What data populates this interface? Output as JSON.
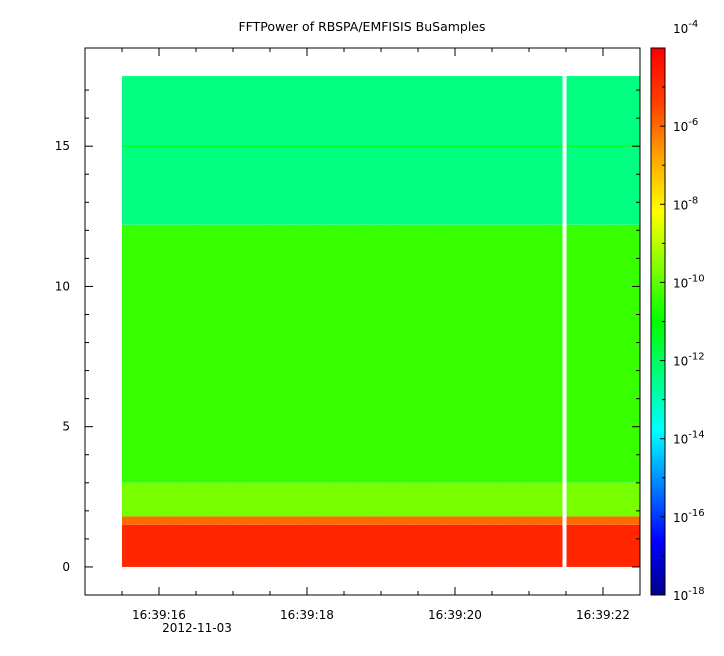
{
  "chart_data": {
    "type": "heatmap",
    "title": "FFTPower of RBSPA/EMFISIS  BuSamples",
    "xlabel": "",
    "ylabel": "",
    "x_tick_labels": [
      "16:39:16",
      "16:39:18",
      "16:39:20",
      "16:39:22"
    ],
    "x_date_label": "2012-11-03",
    "x_range_seconds": [
      15.0,
      22.5
    ],
    "x_major_ticks_seconds": [
      16,
      18,
      20,
      22
    ],
    "x_minor_ticks_seconds": [
      15.5,
      16.5,
      17,
      17.5,
      18.5,
      19,
      19.5,
      20.5,
      21,
      21.5,
      22.5
    ],
    "data_x_range_seconds": [
      15.5,
      22.5
    ],
    "data_gap_seconds": 21.48,
    "y_ticks": [
      0,
      5,
      10,
      15
    ],
    "ylim": [
      -1,
      18.5
    ],
    "data_y_range": [
      0,
      17.5
    ],
    "colorbar": {
      "scale": "log",
      "range": [
        1e-18,
        0.0001
      ],
      "tick_exponents": [
        -4,
        -6,
        -8,
        -10,
        -12,
        -14,
        -16,
        -18
      ],
      "tick_base": "10",
      "colormap": [
        "#00008b",
        "#0000ff",
        "#0080ff",
        "#00ffff",
        "#00ff80",
        "#00ff00",
        "#80ff00",
        "#ffff00",
        "#ffa500",
        "#ff4000",
        "#ff0000"
      ]
    },
    "bands": [
      {
        "y": [
          0,
          1.5
        ],
        "log_power": -4.8
      },
      {
        "y": [
          1.5,
          1.8
        ],
        "log_power": -6.0
      },
      {
        "y": [
          1.8,
          3.0
        ],
        "log_power": -9.7
      },
      {
        "y": [
          3.0,
          12.2
        ],
        "log_power": -10.4
      },
      {
        "y": [
          12.2,
          17.5
        ],
        "log_power": -12.4
      }
    ],
    "grid": false,
    "legend": "colorbar-right"
  }
}
